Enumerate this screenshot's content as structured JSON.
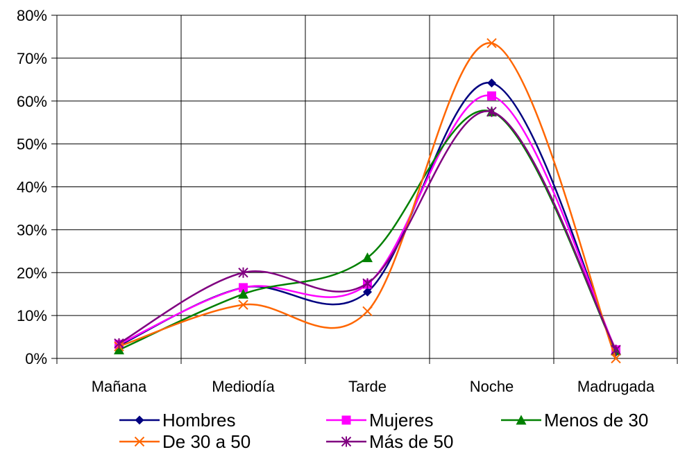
{
  "chart_data": {
    "type": "line",
    "title": "",
    "xlabel": "",
    "ylabel": "",
    "categories": [
      "Mañana",
      "Mediodía",
      "Tarde",
      "Noche",
      "Madrugada"
    ],
    "ylim": [
      0,
      0.8
    ],
    "yticks": [
      "0%",
      "10%",
      "20%",
      "30%",
      "40%",
      "50%",
      "60%",
      "70%",
      "80%"
    ],
    "grid": true,
    "legend_position": "bottom",
    "smooth": true,
    "series": [
      {
        "name": "Hombres",
        "values": [
          0.03,
          0.165,
          0.155,
          0.642,
          0.015
        ],
        "color": "#000080",
        "marker": "diamond"
      },
      {
        "name": "Mujeres",
        "values": [
          0.033,
          0.165,
          0.173,
          0.612,
          0.02
        ],
        "color": "#FF00FF",
        "marker": "square"
      },
      {
        "name": "Menos de 30",
        "values": [
          0.02,
          0.15,
          0.235,
          0.575,
          0.018
        ],
        "color": "#008000",
        "marker": "triangle"
      },
      {
        "name": "De 30 a 50",
        "values": [
          0.028,
          0.125,
          0.11,
          0.735,
          0.0
        ],
        "color": "#FF6600",
        "marker": "x"
      },
      {
        "name": "Más de 50",
        "values": [
          0.035,
          0.2,
          0.175,
          0.575,
          0.02
        ],
        "color": "#800080",
        "marker": "star"
      }
    ]
  }
}
